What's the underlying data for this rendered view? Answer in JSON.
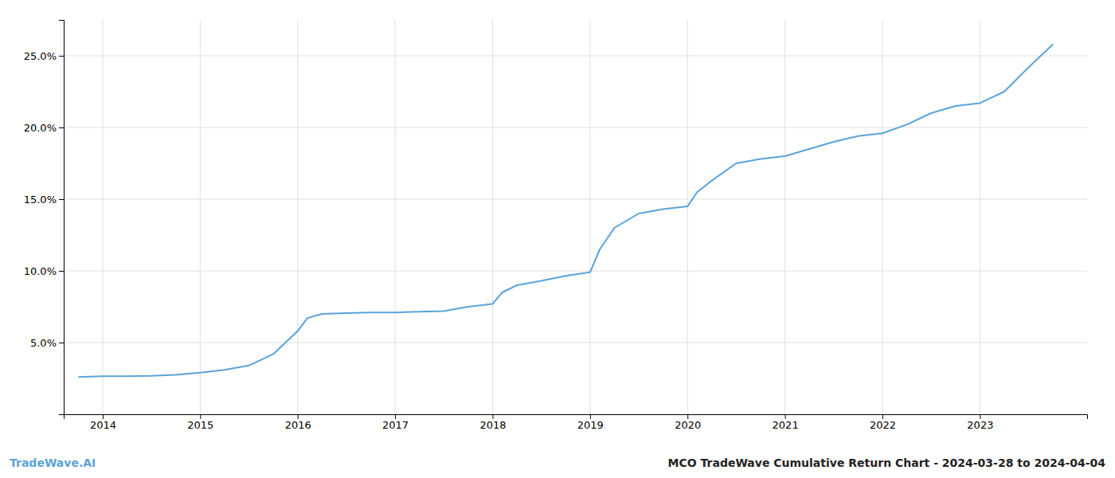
{
  "chart_data": {
    "type": "line",
    "annotations": [
      "TradeWave.AI",
      "MCO TradeWave Cumulative Return Chart - 2024-03-28 to 2024-04-04"
    ],
    "color": "#5ba3d9",
    "grid": true,
    "x": [
      2013.75,
      2014.0,
      2014.25,
      2014.5,
      2014.75,
      2015.0,
      2015.25,
      2015.5,
      2015.75,
      2016.0,
      2016.1,
      2016.25,
      2016.5,
      2016.75,
      2017.0,
      2017.25,
      2017.5,
      2017.75,
      2018.0,
      2018.1,
      2018.25,
      2018.5,
      2018.75,
      2019.0,
      2019.1,
      2019.25,
      2019.5,
      2019.75,
      2020.0,
      2020.1,
      2020.25,
      2020.5,
      2020.75,
      2021.0,
      2021.25,
      2021.5,
      2021.75,
      2022.0,
      2022.25,
      2022.5,
      2022.75,
      2023.0,
      2023.25,
      2023.5,
      2023.75
    ],
    "values": [
      2.6,
      2.65,
      2.65,
      2.68,
      2.75,
      2.9,
      3.1,
      3.4,
      4.2,
      5.8,
      6.7,
      7.0,
      7.05,
      7.1,
      7.1,
      7.15,
      7.2,
      7.5,
      7.7,
      8.5,
      9.0,
      9.3,
      9.65,
      9.9,
      11.5,
      13.0,
      14.0,
      14.3,
      14.5,
      15.5,
      16.3,
      17.5,
      17.8,
      18.0,
      18.5,
      19.0,
      19.4,
      19.6,
      20.2,
      21.0,
      21.5,
      21.7,
      22.5,
      24.2,
      25.8
    ],
    "xlim": [
      2013.6,
      2024.1
    ],
    "xticks": [
      2014,
      2015,
      2016,
      2017,
      2018,
      2019,
      2020,
      2021,
      2022,
      2023
    ],
    "ylim": [
      0,
      27.5
    ],
    "yticks": [
      {
        "value": 5.0,
        "label": "5.0%"
      },
      {
        "value": 10.0,
        "label": "10.0%"
      },
      {
        "value": 15.0,
        "label": "15.0%"
      },
      {
        "value": 20.0,
        "label": "20.0%"
      },
      {
        "value": 25.0,
        "label": "25.0%"
      }
    ]
  }
}
